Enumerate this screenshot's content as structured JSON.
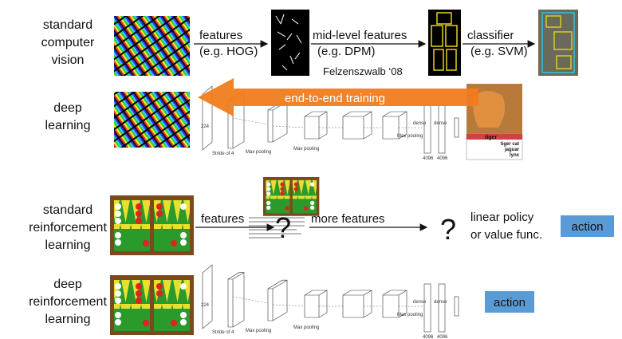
{
  "rows": {
    "standard_cv": {
      "label": [
        "standard",
        "computer",
        "vision"
      ],
      "step1": [
        "features",
        "(e.g. HOG)"
      ],
      "step2": [
        "mid-level features",
        "(e.g. DPM)"
      ],
      "citation": "Felzenszwalb ‘08",
      "step3": [
        "classifier",
        "(e.g. SVM)"
      ]
    },
    "deep_learning": {
      "label": [
        "deep",
        "learning"
      ],
      "arrow": "end-to-end training",
      "classes": [
        "tiger",
        "tiger cat",
        "jaguar",
        "lynx"
      ]
    },
    "standard_rl": {
      "label": [
        "standard",
        "reinforcement",
        "learning"
      ],
      "step1": "features",
      "unknown1": "?",
      "step2": "more features",
      "unknown2": "?",
      "step3": [
        "linear policy",
        "or value func."
      ],
      "output": "action"
    },
    "deep_rl": {
      "label": [
        "deep",
        "reinforcement",
        "learning"
      ],
      "output": "action"
    }
  },
  "network": {
    "input": "224",
    "stride": "Stride of 4",
    "pool": "Max pooling",
    "dense": "dense",
    "units": "4096"
  }
}
